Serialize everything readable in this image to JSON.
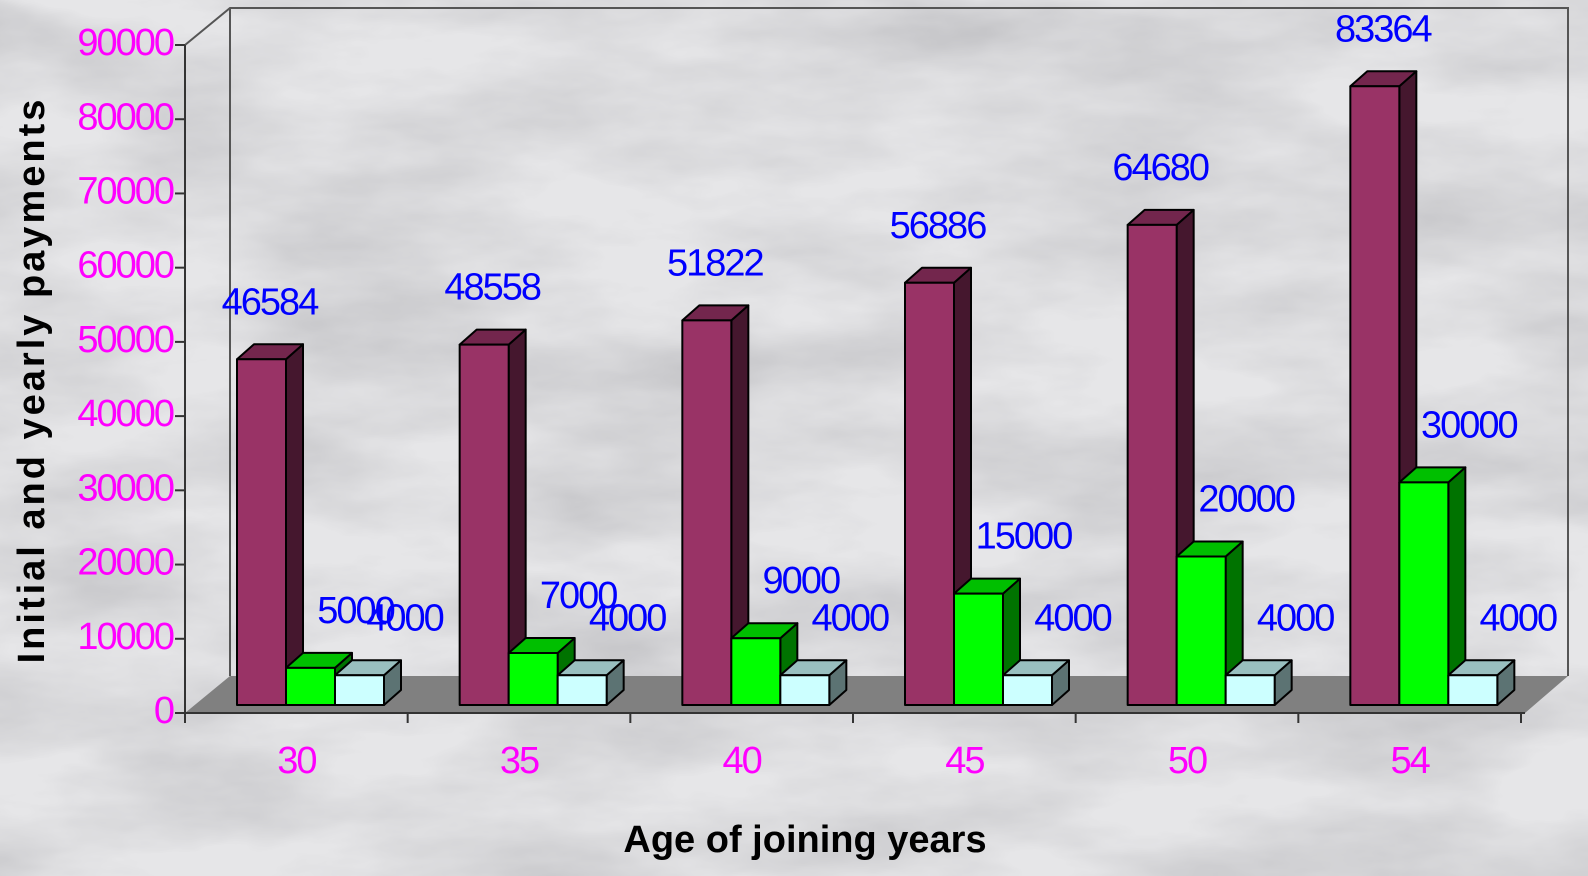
{
  "chart_data": {
    "type": "bar3d",
    "x_label": "Age of joining years",
    "y_label": "Initial and yearly payments",
    "categories": [
      "30",
      "35",
      "40",
      "45",
      "50",
      "54"
    ],
    "series": [
      {
        "color": "#993366",
        "values": [
          46584,
          48558,
          51822,
          56886,
          64680,
          83364
        ]
      },
      {
        "color": "#00ff00",
        "values": [
          5000,
          7000,
          9000,
          15000,
          20000,
          30000
        ]
      },
      {
        "color": "#ccffff",
        "values": [
          4000,
          4000,
          4000,
          4000,
          4000,
          4000
        ]
      }
    ],
    "ylim": [
      0,
      90000
    ],
    "yticks": [
      0,
      10000,
      20000,
      30000,
      40000,
      50000,
      60000,
      70000,
      80000,
      90000
    ]
  }
}
